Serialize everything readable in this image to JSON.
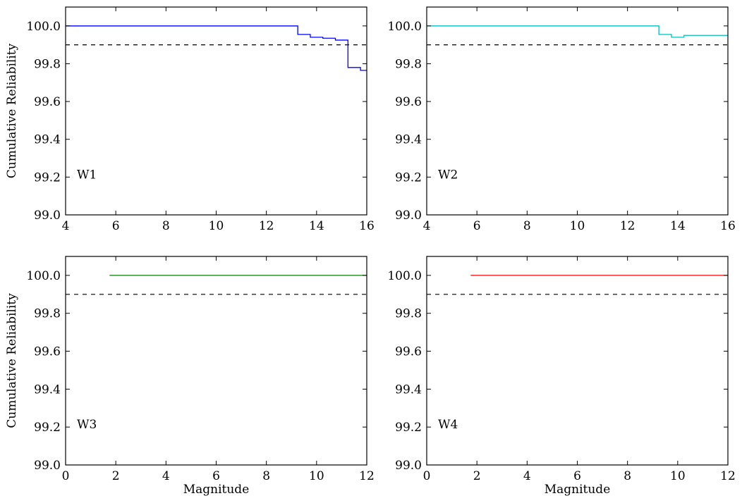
{
  "chart_data": [
    {
      "type": "line",
      "panel_label": "W1",
      "xlabel": "",
      "ylabel": "Cumulative Reliability",
      "xlim": [
        4,
        16
      ],
      "ylim": [
        99.0,
        100.1
      ],
      "xticks": [
        "4",
        "6",
        "8",
        "10",
        "12",
        "14",
        "16"
      ],
      "yticks": [
        "99.0",
        "99.2",
        "99.4",
        "99.6",
        "99.8",
        "100.0"
      ],
      "grid": false,
      "step": true,
      "color": "#0000ff",
      "x": [
        4.0,
        13.25,
        13.75,
        14.25,
        14.75,
        15.25,
        15.75,
        16.0
      ],
      "y": [
        100.0,
        99.955,
        99.94,
        99.935,
        99.925,
        99.78,
        99.765,
        99.765
      ],
      "reference_line": {
        "y": 99.9,
        "style": "dashed",
        "color": "#000000"
      }
    },
    {
      "type": "line",
      "panel_label": "W2",
      "xlabel": "",
      "ylabel": "",
      "xlim": [
        4,
        16
      ],
      "ylim": [
        99.0,
        100.1
      ],
      "xticks": [
        "4",
        "6",
        "8",
        "10",
        "12",
        "14",
        "16"
      ],
      "yticks": [
        "99.0",
        "99.2",
        "99.4",
        "99.6",
        "99.8",
        "100.0"
      ],
      "grid": false,
      "step": true,
      "color": "#00bfbf",
      "x": [
        4.0,
        13.25,
        13.75,
        14.25,
        16.0
      ],
      "y": [
        100.0,
        99.955,
        99.94,
        99.95,
        99.95
      ],
      "reference_line": {
        "y": 99.9,
        "style": "dashed",
        "color": "#000000"
      }
    },
    {
      "type": "line",
      "panel_label": "W3",
      "xlabel": "Magnitude",
      "ylabel": "Cumulative Reliability",
      "xlim": [
        0,
        12
      ],
      "ylim": [
        99.0,
        100.1
      ],
      "xticks": [
        "0",
        "2",
        "4",
        "6",
        "8",
        "10",
        "12"
      ],
      "yticks": [
        "99.0",
        "99.2",
        "99.4",
        "99.6",
        "99.8",
        "100.0"
      ],
      "grid": false,
      "step": true,
      "color": "#008000",
      "x": [
        1.75,
        12.0
      ],
      "y": [
        100.0,
        100.0
      ],
      "reference_line": {
        "y": 99.9,
        "style": "dashed",
        "color": "#000000"
      }
    },
    {
      "type": "line",
      "panel_label": "W4",
      "xlabel": "Magnitude",
      "ylabel": "",
      "xlim": [
        0,
        12
      ],
      "ylim": [
        99.0,
        100.1
      ],
      "xticks": [
        "0",
        "2",
        "4",
        "6",
        "8",
        "10",
        "12"
      ],
      "yticks": [
        "99.0",
        "99.2",
        "99.4",
        "99.6",
        "99.8",
        "100.0"
      ],
      "grid": false,
      "step": true,
      "color": "#ff0000",
      "x": [
        1.75,
        12.0
      ],
      "y": [
        100.0,
        100.0
      ],
      "reference_line": {
        "y": 99.9,
        "style": "dashed",
        "color": "#000000"
      }
    }
  ]
}
